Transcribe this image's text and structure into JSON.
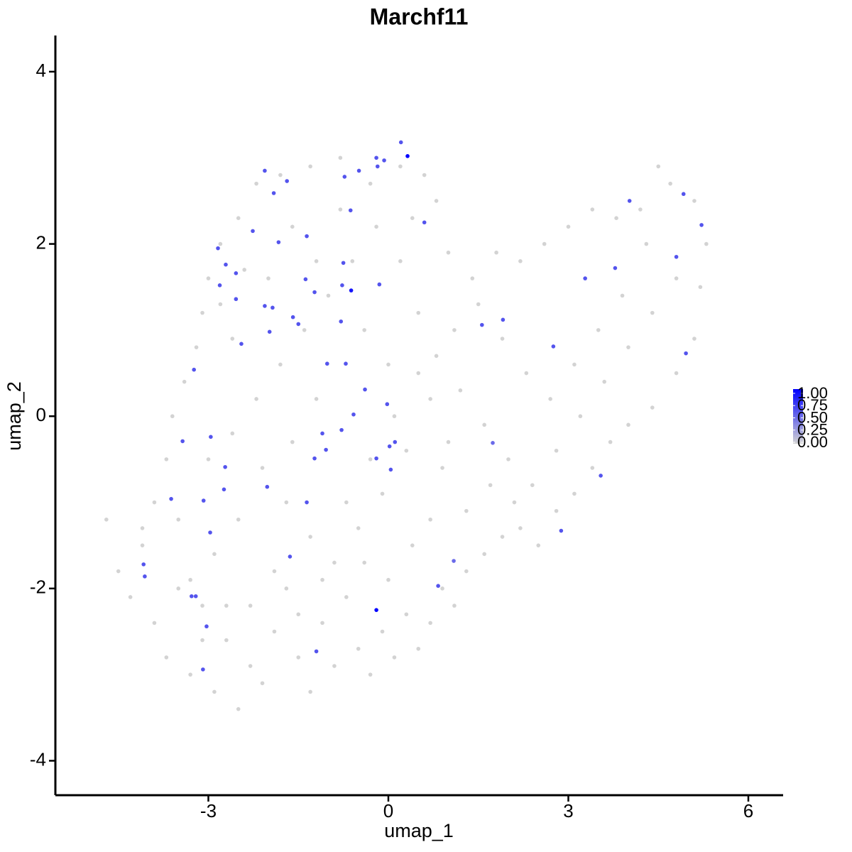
{
  "chart_data": {
    "type": "scatter",
    "title": "Marchf11",
    "xlabel": "umap_1",
    "ylabel": "umap_2",
    "xlim": [
      -5.55,
      6.58
    ],
    "ylim": [
      -4.4,
      4.42
    ],
    "xticks": [
      -3,
      0,
      3,
      6
    ],
    "yticks": [
      -4,
      -2,
      0,
      2,
      4
    ],
    "colors": [
      "#d3d3d3",
      "#0000ff"
    ],
    "legend_ticks": [
      {
        "value": 0,
        "label": "0.00"
      },
      {
        "value": 0.25,
        "label": "0.25"
      },
      {
        "value": 0.5,
        "label": "0.50"
      },
      {
        "value": 0.75,
        "label": "0.75"
      },
      {
        "value": 1,
        "label": "1.00"
      }
    ],
    "x": [
      -4.7,
      -4.5,
      -4.3,
      -4.1,
      -3.9,
      -3.7,
      -3.5,
      -3.3,
      -3.1,
      -2.9,
      -2.7,
      -2.5,
      -2.3,
      -2.1,
      -1.9,
      -1.7,
      -1.5,
      -1.3,
      -1.1,
      -0.9,
      -0.7,
      -0.5,
      -0.3,
      -0.1,
      0.1,
      0.3,
      0.5,
      0.7,
      0.9,
      1.1,
      1.3,
      1.6,
      1.9,
      2.2,
      2.5,
      2.8,
      3.1,
      3.4,
      3.7,
      4.0,
      4.4,
      4.8,
      5.1,
      5.2,
      5.3,
      5.1,
      4.7,
      4.5,
      4.2,
      3.8,
      3.4,
      3.0,
      2.6,
      2.2,
      1.8,
      1.4,
      1.0,
      0.8,
      0.6,
      0.2,
      -0.3,
      -0.8,
      -1.3,
      -1.8,
      -2.2,
      -2.5,
      -2.8,
      -3.0,
      -3.1,
      -3.2,
      -3.4,
      -3.6,
      -3.7,
      -3.9,
      -4.1,
      -3.0,
      -2.6,
      -2.2,
      -1.8,
      -1.4,
      -1.0,
      -0.6,
      -0.2,
      0.2,
      0.5,
      0.8,
      1.2,
      1.6,
      2.0,
      2.4,
      2.8,
      3.2,
      3.6,
      4.0,
      4.4,
      4.8,
      4.3,
      3.9,
      3.5,
      3.1,
      2.7,
      2.3,
      1.9,
      1.5,
      1.1,
      0.7,
      0.3,
      -0.1,
      -0.5,
      -0.9,
      -1.3,
      -1.7,
      -2.1,
      -2.5,
      -2.9,
      -3.3,
      -3.5,
      -3.1,
      -2.7,
      -2.3,
      -1.9,
      -1.5,
      -1.1,
      -0.7,
      -0.3,
      0.1,
      0.5,
      0.9,
      1.3,
      1.7,
      2.1,
      0.4,
      0.0,
      -0.4,
      0.7,
      1.0,
      -1.2,
      -1.6,
      -2.0,
      -1.6,
      -1.2,
      -0.8,
      -0.4,
      0.0,
      0.4,
      -2.6,
      -2.8,
      -2.4,
      0.21,
      -0.2,
      -0.07,
      -0.18,
      -0.49,
      -0.73,
      -2.06,
      -1.69,
      -1.91,
      -0.63,
      0.6,
      -2.26,
      -1.36,
      -1.83,
      -2.84,
      -2.71,
      -0.75,
      -2.54,
      -1.38,
      -2.81,
      -0.77,
      -0.15,
      -1.23,
      -2.54,
      -2.06,
      -1.93,
      -1.59,
      -1.5,
      -0.79,
      -1.98,
      -2.45,
      -1.02,
      -0.71,
      -3.24,
      -0.39,
      -0.02,
      -0.58,
      -3.43,
      -2.96,
      -1.1,
      0.11,
      0.02,
      -1.04,
      -0.78,
      -1.23,
      -0.2,
      0.04,
      -2.72,
      -2.02,
      -2.74,
      -3.62,
      -3.08,
      -1.36,
      -2.97,
      -1.64,
      -4.08,
      -4.06,
      1.09,
      0.83,
      -3.28,
      -3.21,
      -3.03,
      -1.2,
      -3.09,
      1.74,
      3.54,
      2.88,
      1.56,
      1.91,
      2.75,
      3.28,
      3.78,
      4.02,
      4.92,
      5.22,
      4.8,
      4.96,
      0.32,
      -0.62,
      -0.2
    ],
    "y": [
      -1.2,
      -1.8,
      -2.1,
      -1.5,
      -2.4,
      -2.8,
      -2.0,
      -3.0,
      -2.6,
      -3.2,
      -2.2,
      -3.4,
      -2.9,
      -3.1,
      -2.5,
      -2.0,
      -2.8,
      -3.2,
      -2.4,
      -2.9,
      -2.1,
      -2.7,
      -3.0,
      -2.5,
      -2.8,
      -2.3,
      -2.7,
      -2.4,
      -2.0,
      -2.2,
      -1.8,
      -1.6,
      -1.4,
      -1.3,
      -1.5,
      -1.1,
      -0.9,
      -0.6,
      -0.3,
      -0.1,
      0.1,
      0.5,
      0.9,
      1.5,
      2.0,
      2.5,
      2.7,
      2.9,
      2.4,
      2.3,
      2.4,
      2.2,
      2.0,
      1.8,
      1.9,
      1.6,
      1.9,
      2.5,
      2.8,
      2.9,
      2.7,
      3.0,
      2.9,
      2.8,
      2.7,
      2.3,
      2.0,
      1.6,
      1.2,
      0.8,
      0.4,
      0.0,
      -0.5,
      -1.0,
      -1.3,
      -0.5,
      -0.2,
      0.2,
      0.6,
      1.0,
      1.4,
      1.8,
      2.2,
      1.8,
      1.2,
      0.7,
      0.3,
      -0.1,
      -0.5,
      -0.8,
      -0.4,
      0.0,
      0.4,
      0.8,
      1.2,
      1.6,
      2.0,
      1.4,
      1.0,
      0.6,
      0.2,
      0.5,
      0.9,
      1.3,
      1.0,
      0.2,
      -0.4,
      -0.9,
      -1.3,
      -1.7,
      -1.4,
      -1.0,
      -0.6,
      -1.2,
      -1.6,
      -1.9,
      -1.2,
      -2.2,
      -2.6,
      -2.2,
      -1.8,
      -2.3,
      -1.9,
      -1.0,
      -0.5,
      0.0,
      0.5,
      -0.6,
      -1.1,
      -0.8,
      -1.0,
      -1.5,
      -1.9,
      -1.7,
      -1.2,
      -0.3,
      0.2,
      -0.3,
      1.6,
      2.2,
      1.8,
      2.4,
      1.0,
      0.6,
      2.3,
      0.9,
      1.3,
      1.7,
      3.18,
      3.0,
      2.97,
      2.9,
      2.85,
      2.78,
      2.85,
      2.73,
      2.59,
      2.39,
      2.25,
      2.15,
      2.09,
      2.02,
      1.95,
      1.76,
      1.78,
      1.66,
      1.59,
      1.52,
      1.52,
      1.53,
      1.44,
      1.36,
      1.28,
      1.26,
      1.15,
      1.07,
      1.1,
      0.98,
      0.84,
      0.61,
      0.61,
      0.54,
      0.31,
      0.14,
      0.02,
      -0.29,
      -0.24,
      -0.2,
      -0.3,
      -0.35,
      -0.39,
      -0.16,
      -0.49,
      -0.49,
      -0.62,
      -0.59,
      -0.82,
      -0.85,
      -0.96,
      -0.98,
      -1.0,
      -1.35,
      -1.63,
      -1.72,
      -1.86,
      -1.68,
      -1.97,
      -2.09,
      -2.09,
      -2.44,
      -2.73,
      -2.94,
      -0.31,
      -0.69,
      -1.33,
      1.06,
      1.12,
      0.81,
      1.6,
      1.72,
      2.5,
      2.58,
      2.22,
      1.85,
      0.73,
      3.02,
      1.46,
      -2.25
    ],
    "values": [
      0,
      0,
      0,
      0,
      0,
      0,
      0,
      0,
      0,
      0,
      0,
      0,
      0,
      0,
      0,
      0,
      0,
      0,
      0,
      0,
      0,
      0,
      0,
      0,
      0,
      0,
      0,
      0,
      0,
      0,
      0,
      0,
      0,
      0,
      0,
      0,
      0,
      0,
      0,
      0,
      0,
      0,
      0,
      0,
      0,
      0,
      0,
      0,
      0,
      0,
      0,
      0,
      0,
      0,
      0,
      0,
      0,
      0,
      0,
      0,
      0,
      0,
      0,
      0,
      0,
      0,
      0,
      0,
      0,
      0,
      0,
      0,
      0,
      0,
      0,
      0,
      0,
      0,
      0,
      0,
      0,
      0,
      0,
      0,
      0,
      0,
      0,
      0,
      0,
      0,
      0,
      0,
      0,
      0,
      0,
      0,
      0,
      0,
      0,
      0,
      0,
      0,
      0,
      0,
      0,
      0,
      0,
      0,
      0,
      0,
      0,
      0,
      0,
      0,
      0,
      0,
      0,
      0,
      0,
      0,
      0,
      0,
      0,
      0,
      0,
      0,
      0,
      0,
      0,
      0,
      0,
      0,
      0,
      0,
      0,
      0,
      0,
      0,
      0,
      0,
      0,
      0,
      0,
      0,
      0,
      0,
      0,
      0,
      0.6,
      0.6,
      0.6,
      0.6,
      0.6,
      0.6,
      0.6,
      0.6,
      0.6,
      0.6,
      0.6,
      0.6,
      0.6,
      0.6,
      0.6,
      0.6,
      0.6,
      0.6,
      0.6,
      0.6,
      0.6,
      0.6,
      0.6,
      0.6,
      0.6,
      0.6,
      0.6,
      0.6,
      0.6,
      0.6,
      0.6,
      0.6,
      0.6,
      0.6,
      0.6,
      0.6,
      0.6,
      0.6,
      0.6,
      0.6,
      0.6,
      0.6,
      0.6,
      0.6,
      0.6,
      0.6,
      0.6,
      0.6,
      0.6,
      0.6,
      0.6,
      0.6,
      0.6,
      0.6,
      0.6,
      0.6,
      0.6,
      0.5,
      0.6,
      0.6,
      0.6,
      0.6,
      0.6,
      0.6,
      0.5,
      0.6,
      0.6,
      0.6,
      0.6,
      0.6,
      0.6,
      0.6,
      0.6,
      0.6,
      0.6,
      0.6,
      0.6,
      1,
      0.9,
      1
    ]
  }
}
